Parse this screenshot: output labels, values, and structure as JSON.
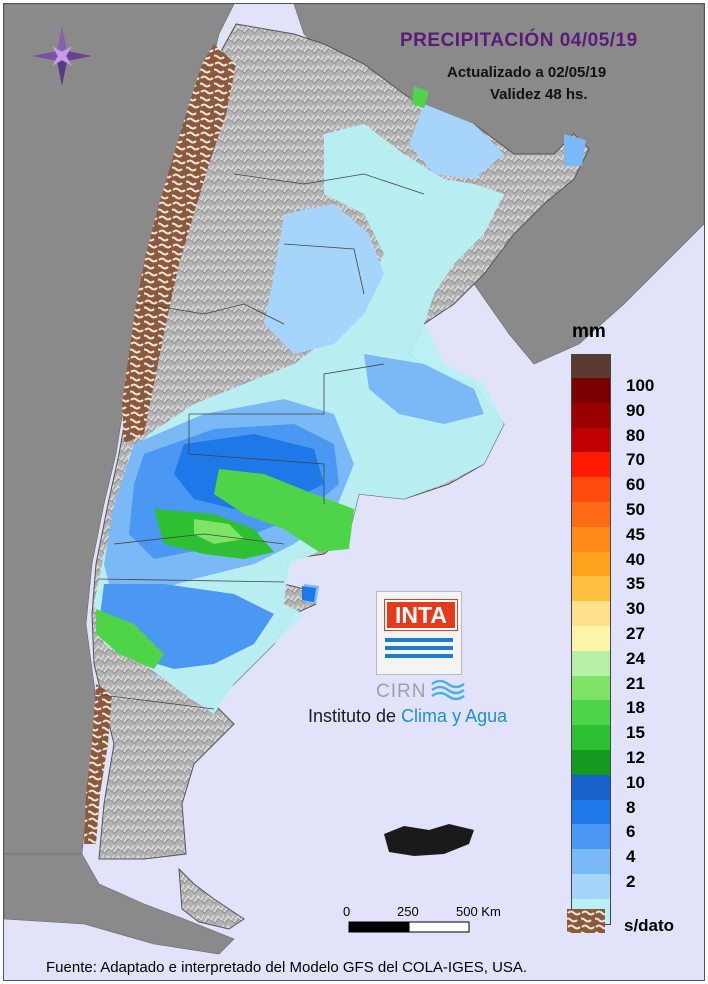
{
  "header": {
    "title": "PRECIPITACIÓN 04/05/19",
    "updated": "Actualizado a 02/05/19",
    "validity": "Validez 48 hs."
  },
  "legend": {
    "unit": "mm",
    "items": [
      {
        "label": "100",
        "color": "#7a0000"
      },
      {
        "label": "90",
        "color": "#9a0000"
      },
      {
        "label": "80",
        "color": "#c00000"
      },
      {
        "label": "70",
        "color": "#ff1a00"
      },
      {
        "label": "60",
        "color": "#ff4a10"
      },
      {
        "label": "50",
        "color": "#ff6a14"
      },
      {
        "label": "45",
        "color": "#ff8a1a"
      },
      {
        "label": "40",
        "color": "#ffa21e"
      },
      {
        "label": "35",
        "color": "#ffc040"
      },
      {
        "label": "30",
        "color": "#ffe08c"
      },
      {
        "label": "27",
        "color": "#fff4a8"
      },
      {
        "label": "24",
        "color": "#b8f0a8"
      },
      {
        "label": "21",
        "color": "#7ee466"
      },
      {
        "label": "18",
        "color": "#4ed448"
      },
      {
        "label": "15",
        "color": "#2ebf32"
      },
      {
        "label": "12",
        "color": "#149a1e"
      },
      {
        "label": "10",
        "color": "#1860cc"
      },
      {
        "label": "8",
        "color": "#1f78e8"
      },
      {
        "label": "6",
        "color": "#4a98f2"
      },
      {
        "label": "4",
        "color": "#7ab8f6"
      },
      {
        "label": "2",
        "color": "#a6d4fa"
      },
      {
        "label": "",
        "color": "#b8f0f6"
      }
    ],
    "top_color": "#5c3a30",
    "no_data_label": "s/dato",
    "no_data_color": "#8b5a3c"
  },
  "scale_bar": {
    "labels": [
      "0",
      "250",
      "500 Km"
    ]
  },
  "logo": {
    "inta": "INTA",
    "cirn": "CIRN",
    "institute_a": "Instituto de ",
    "institute_b": "Clima y Agua"
  },
  "footer": "Fuente: Adaptado e interpretado del Modelo GFS del COLA-IGES, USA.",
  "colors": {
    "background": "#e1e3fb",
    "neighbor_land": "#8a8a8a",
    "terrain": "#b8b8b8",
    "title": "#5a1a78"
  }
}
